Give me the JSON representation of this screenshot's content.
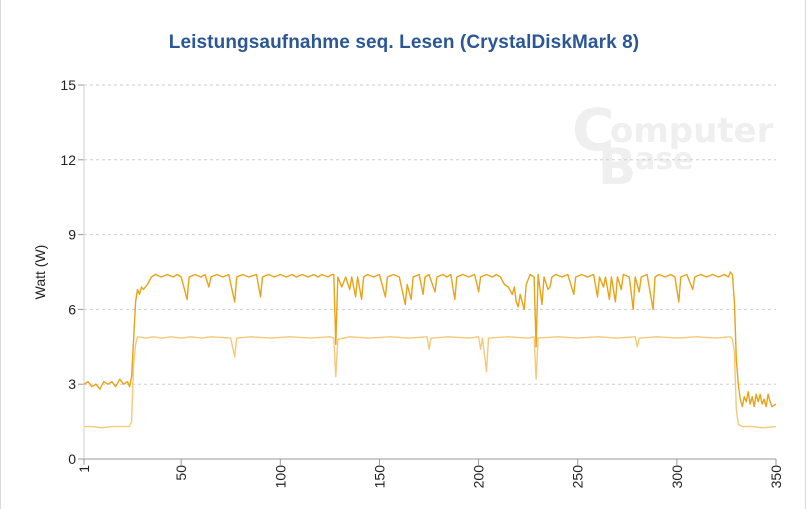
{
  "chart_data": {
    "type": "line",
    "title": "Leistungsaufnahme seq. Lesen (CrystalDiskMark 8)",
    "xlabel": "",
    "ylabel": "Watt (W)",
    "xlim": [
      1,
      350
    ],
    "ylim": [
      0,
      15
    ],
    "xticks": [
      1,
      50,
      100,
      150,
      200,
      250,
      300,
      350
    ],
    "yticks": [
      0,
      3,
      6,
      9,
      12,
      15
    ],
    "grid": "horizontal dashed",
    "watermark": "ComputerBase",
    "series": [
      {
        "color": "#e8a317",
        "points": [
          [
            1,
            3.0
          ],
          [
            3,
            3.1
          ],
          [
            5,
            2.9
          ],
          [
            7,
            3.0
          ],
          [
            9,
            2.8
          ],
          [
            11,
            3.1
          ],
          [
            13,
            3.0
          ],
          [
            15,
            3.1
          ],
          [
            17,
            2.9
          ],
          [
            19,
            3.2
          ],
          [
            21,
            3.0
          ],
          [
            23,
            3.1
          ],
          [
            24,
            2.9
          ],
          [
            25,
            3.3
          ],
          [
            26,
            4.8
          ],
          [
            27,
            6.3
          ],
          [
            28,
            6.8
          ],
          [
            29,
            6.6
          ],
          [
            30,
            6.9
          ],
          [
            31,
            6.8
          ],
          [
            33,
            7.0
          ],
          [
            35,
            7.3
          ],
          [
            37,
            7.4
          ],
          [
            40,
            7.3
          ],
          [
            43,
            7.4
          ],
          [
            46,
            7.3
          ],
          [
            48,
            7.4
          ],
          [
            50,
            7.3
          ],
          [
            53,
            6.4
          ],
          [
            54,
            7.3
          ],
          [
            57,
            7.4
          ],
          [
            60,
            7.3
          ],
          [
            62,
            7.4
          ],
          [
            64,
            6.9
          ],
          [
            65,
            7.3
          ],
          [
            68,
            7.4
          ],
          [
            71,
            7.3
          ],
          [
            74,
            7.4
          ],
          [
            77,
            6.3
          ],
          [
            78,
            7.3
          ],
          [
            81,
            7.4
          ],
          [
            84,
            7.3
          ],
          [
            88,
            7.4
          ],
          [
            90,
            6.5
          ],
          [
            91,
            7.3
          ],
          [
            94,
            7.4
          ],
          [
            97,
            7.3
          ],
          [
            100,
            7.4
          ],
          [
            103,
            7.3
          ],
          [
            106,
            7.4
          ],
          [
            108,
            7.3
          ],
          [
            111,
            7.4
          ],
          [
            114,
            7.3
          ],
          [
            117,
            7.4
          ],
          [
            119,
            7.3
          ],
          [
            121,
            7.4
          ],
          [
            124,
            7.3
          ],
          [
            126,
            7.4
          ],
          [
            127,
            7.4
          ],
          [
            128,
            4.6
          ],
          [
            129,
            7.3
          ],
          [
            131,
            6.9
          ],
          [
            133,
            7.3
          ],
          [
            135,
            6.8
          ],
          [
            136,
            7.3
          ],
          [
            138,
            6.5
          ],
          [
            139,
            7.3
          ],
          [
            141,
            6.4
          ],
          [
            142,
            7.3
          ],
          [
            144,
            7.4
          ],
          [
            147,
            7.3
          ],
          [
            150,
            7.4
          ],
          [
            153,
            6.5
          ],
          [
            154,
            7.3
          ],
          [
            157,
            7.4
          ],
          [
            160,
            7.3
          ],
          [
            163,
            6.2
          ],
          [
            164,
            7.0
          ],
          [
            166,
            6.4
          ],
          [
            167,
            7.3
          ],
          [
            170,
            7.4
          ],
          [
            172,
            6.6
          ],
          [
            173,
            7.3
          ],
          [
            175,
            7.4
          ],
          [
            178,
            6.7
          ],
          [
            179,
            7.3
          ],
          [
            182,
            7.4
          ],
          [
            184,
            7.3
          ],
          [
            186,
            7.4
          ],
          [
            188,
            6.4
          ],
          [
            189,
            7.3
          ],
          [
            192,
            7.4
          ],
          [
            195,
            7.3
          ],
          [
            198,
            7.4
          ],
          [
            200,
            6.7
          ],
          [
            201,
            7.3
          ],
          [
            204,
            7.4
          ],
          [
            207,
            7.3
          ],
          [
            209,
            7.4
          ],
          [
            211,
            7.3
          ],
          [
            213,
            7.0
          ],
          [
            215,
            6.9
          ],
          [
            217,
            6.6
          ],
          [
            218,
            6.9
          ],
          [
            219,
            6.3
          ],
          [
            220,
            6.1
          ],
          [
            221,
            6.6
          ],
          [
            223,
            6.0
          ],
          [
            224,
            7.0
          ],
          [
            226,
            7.4
          ],
          [
            228,
            7.3
          ],
          [
            229,
            4.5
          ],
          [
            230,
            7.4
          ],
          [
            232,
            6.2
          ],
          [
            233,
            7.3
          ],
          [
            235,
            6.8
          ],
          [
            236,
            6.9
          ],
          [
            237,
            7.3
          ],
          [
            239,
            7.4
          ],
          [
            242,
            7.3
          ],
          [
            245,
            7.4
          ],
          [
            248,
            6.6
          ],
          [
            249,
            7.3
          ],
          [
            252,
            7.4
          ],
          [
            255,
            7.3
          ],
          [
            258,
            7.4
          ],
          [
            260,
            6.5
          ],
          [
            261,
            7.3
          ],
          [
            263,
            6.9
          ],
          [
            264,
            7.3
          ],
          [
            266,
            6.4
          ],
          [
            267,
            7.3
          ],
          [
            269,
            6.3
          ],
          [
            270,
            7.3
          ],
          [
            272,
            6.8
          ],
          [
            273,
            7.4
          ],
          [
            276,
            7.3
          ],
          [
            278,
            6.0
          ],
          [
            279,
            7.3
          ],
          [
            281,
            6.7
          ],
          [
            282,
            7.3
          ],
          [
            285,
            7.4
          ],
          [
            288,
            6.0
          ],
          [
            289,
            7.3
          ],
          [
            291,
            7.4
          ],
          [
            294,
            7.3
          ],
          [
            297,
            7.4
          ],
          [
            299,
            7.3
          ],
          [
            301,
            6.3
          ],
          [
            302,
            7.3
          ],
          [
            305,
            7.4
          ],
          [
            308,
            6.8
          ],
          [
            309,
            7.3
          ],
          [
            312,
            7.4
          ],
          [
            315,
            7.3
          ],
          [
            318,
            7.4
          ],
          [
            321,
            7.3
          ],
          [
            324,
            7.4
          ],
          [
            326,
            7.3
          ],
          [
            327,
            7.5
          ],
          [
            328,
            7.4
          ],
          [
            329,
            6.3
          ],
          [
            330,
            4.0
          ],
          [
            331,
            3.0
          ],
          [
            332,
            2.4
          ],
          [
            333,
            2.1
          ],
          [
            334,
            2.5
          ],
          [
            335,
            2.3
          ],
          [
            336,
            2.7
          ],
          [
            337,
            2.2
          ],
          [
            338,
            2.5
          ],
          [
            339,
            2.1
          ],
          [
            340,
            2.6
          ],
          [
            341,
            2.3
          ],
          [
            342,
            2.6
          ],
          [
            343,
            2.2
          ],
          [
            344,
            2.4
          ],
          [
            345,
            2.1
          ],
          [
            346,
            2.6
          ],
          [
            347,
            2.3
          ],
          [
            348,
            2.1
          ],
          [
            350,
            2.2
          ]
        ]
      },
      {
        "color": "#f5c978",
        "points": [
          [
            1,
            1.3
          ],
          [
            5,
            1.3
          ],
          [
            10,
            1.25
          ],
          [
            15,
            1.3
          ],
          [
            20,
            1.3
          ],
          [
            24,
            1.3
          ],
          [
            25,
            1.5
          ],
          [
            26,
            3.8
          ],
          [
            27,
            4.6
          ],
          [
            28,
            4.9
          ],
          [
            32,
            4.85
          ],
          [
            36,
            4.9
          ],
          [
            40,
            4.85
          ],
          [
            45,
            4.9
          ],
          [
            50,
            4.85
          ],
          [
            55,
            4.9
          ],
          [
            60,
            4.85
          ],
          [
            65,
            4.9
          ],
          [
            75,
            4.85
          ],
          [
            77,
            4.1
          ],
          [
            78,
            4.85
          ],
          [
            85,
            4.9
          ],
          [
            95,
            4.85
          ],
          [
            105,
            4.9
          ],
          [
            115,
            4.85
          ],
          [
            125,
            4.9
          ],
          [
            127,
            4.85
          ],
          [
            128,
            3.3
          ],
          [
            129,
            4.8
          ],
          [
            135,
            4.9
          ],
          [
            145,
            4.85
          ],
          [
            155,
            4.9
          ],
          [
            165,
            4.85
          ],
          [
            174,
            4.9
          ],
          [
            175,
            4.4
          ],
          [
            176,
            4.85
          ],
          [
            185,
            4.9
          ],
          [
            195,
            4.85
          ],
          [
            200,
            4.9
          ],
          [
            201,
            4.4
          ],
          [
            202,
            4.85
          ],
          [
            204,
            3.5
          ],
          [
            205,
            4.85
          ],
          [
            215,
            4.9
          ],
          [
            225,
            4.85
          ],
          [
            228,
            4.9
          ],
          [
            229,
            3.2
          ],
          [
            230,
            4.85
          ],
          [
            240,
            4.9
          ],
          [
            250,
            4.85
          ],
          [
            260,
            4.9
          ],
          [
            270,
            4.85
          ],
          [
            279,
            4.9
          ],
          [
            280,
            4.5
          ],
          [
            281,
            4.85
          ],
          [
            290,
            4.9
          ],
          [
            300,
            4.85
          ],
          [
            310,
            4.9
          ],
          [
            320,
            4.85
          ],
          [
            327,
            4.9
          ],
          [
            328,
            4.8
          ],
          [
            329,
            4.3
          ],
          [
            330,
            2.0
          ],
          [
            331,
            1.4
          ],
          [
            333,
            1.3
          ],
          [
            338,
            1.3
          ],
          [
            343,
            1.25
          ],
          [
            350,
            1.3
          ]
        ]
      }
    ]
  }
}
